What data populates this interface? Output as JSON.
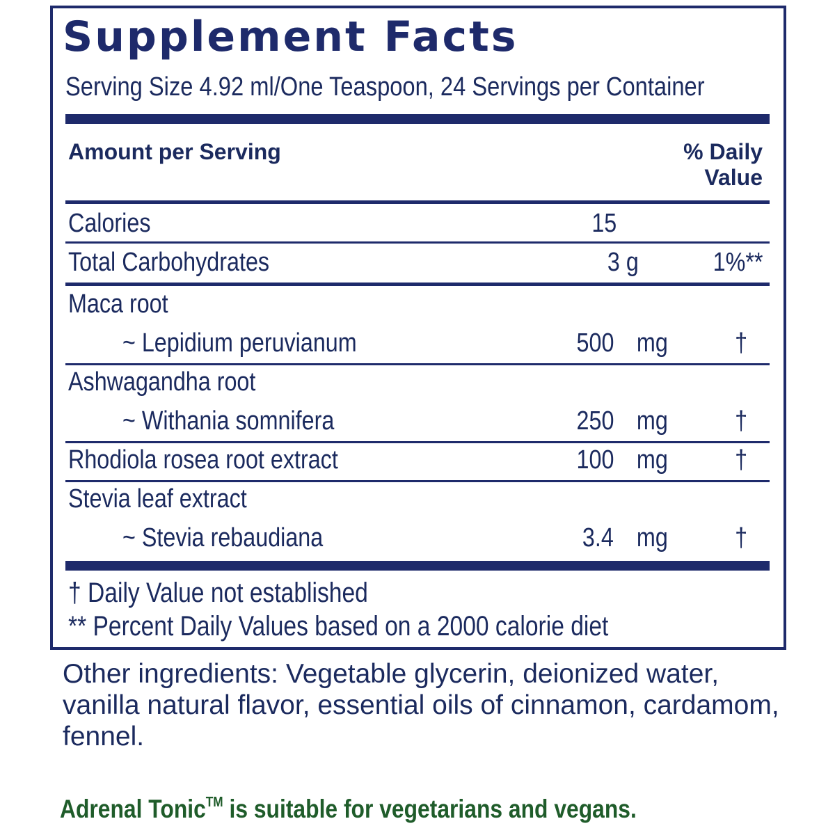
{
  "label": {
    "title": "Supplement Facts",
    "serving": "Serving Size 4.92 ml/One Teaspoon, 24 Servings per Container",
    "header_left": "Amount per Serving",
    "header_right_1": "% Daily",
    "header_right_2": "Value",
    "calories": {
      "name": "Calories",
      "amount": "15"
    },
    "carbs": {
      "name": "Total Carbohydrates",
      "amount": "3 g",
      "dv": "1%**"
    },
    "ingredients": [
      {
        "name": "Maca root",
        "sub": "~ Lepidium peruvianum",
        "amount": "500",
        "unit": "mg",
        "dv": "†"
      },
      {
        "name": "Ashwagandha root",
        "sub": "~ Withania somnifera",
        "amount": "250",
        "unit": "mg",
        "dv": "†"
      },
      {
        "name": "Rhodiola rosea root extract",
        "sub": "",
        "amount": "100",
        "unit": "mg",
        "dv": "†"
      },
      {
        "name": "Stevia leaf extract",
        "sub": "~ Stevia rebaudiana",
        "amount": "3.4",
        "unit": "mg",
        "dv": "†"
      }
    ],
    "footnote_1": "† Daily Value not established",
    "footnote_2": "** Percent Daily Values based on a 2000 calorie diet"
  },
  "other_ingredients": "Other ingredients: Vegetable glycerin, deionized water, vanilla natural flavor, essential oils of cinnamon, cardamom, fennel.",
  "vegan_note": {
    "product": "Adrenal Tonic",
    "tm": "TM",
    "text": " is suitable for vegetarians and vegans."
  },
  "colors": {
    "navy": "#1e2a6b",
    "text": "#1b2a5e",
    "green": "#1f5c2a"
  }
}
